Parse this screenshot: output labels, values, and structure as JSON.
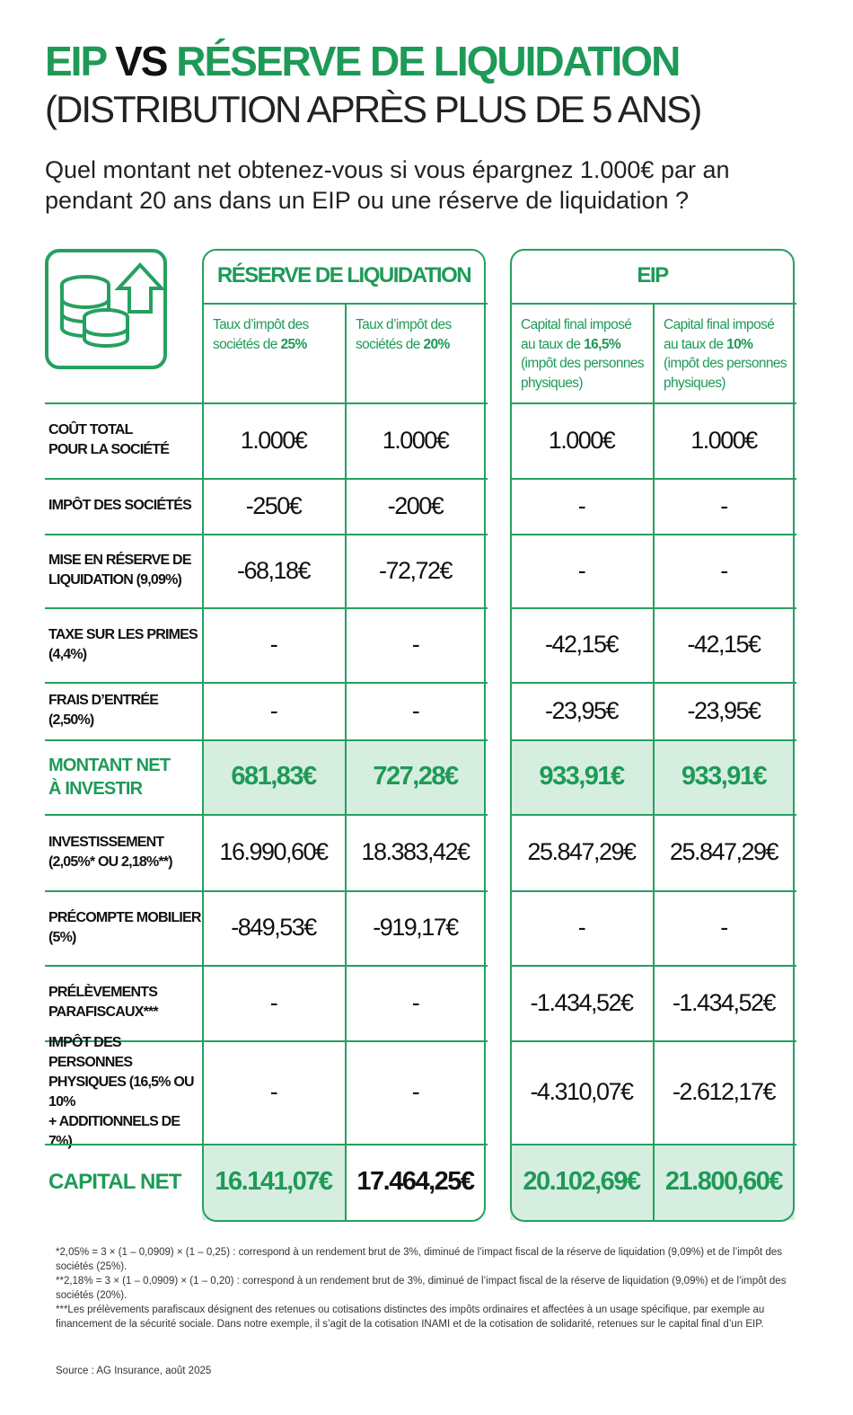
{
  "header": {
    "title_parts": [
      "EIP",
      "VS",
      "RÉSERVE DE LIQUIDATION"
    ],
    "subtitle": "(DISTRIBUTION APRÈS PLUS DE 5 ANS)",
    "question": "Quel montant net obtenez-vous si vous épargnez 1.000€ par an pendant 20 ans dans un EIP ou une réserve de liquidation ?"
  },
  "table": {
    "groups": [
      "RÉSERVE DE LIQUIDATION",
      "EIP"
    ],
    "columns": [
      [
        "Taux d’impôt des sociétés de ",
        "25%"
      ],
      [
        "Taux d’impôt des sociétés de ",
        "20%"
      ],
      [
        "Capital final imposé au taux de ",
        "16,5%",
        " (impôt des personnes physiques)"
      ],
      [
        "Capital final imposé au taux de ",
        "10%",
        " (impôt des personnes physiques)"
      ]
    ],
    "rows": [
      {
        "label": [
          "COÛT TOTAL",
          "POUR LA SOCIÉTÉ"
        ],
        "cells": [
          "1.000€",
          "1.000€",
          "1.000€",
          "1.000€"
        ]
      },
      {
        "label": [
          "IMPÔT DES SOCIÉTÉS"
        ],
        "cells": [
          "-250€",
          "-200€",
          "-",
          "-"
        ]
      },
      {
        "label": [
          "MISE EN RÉSERVE DE",
          "LIQUIDATION (9,09%)"
        ],
        "cells": [
          "-68,18€",
          "-72,72€",
          "-",
          "-"
        ]
      },
      {
        "label": [
          "TAXE SUR LES PRIMES",
          "(4,4%)"
        ],
        "cells": [
          "-",
          "-",
          "-42,15€",
          "-42,15€"
        ]
      },
      {
        "label": [
          "FRAIS D’ENTRÉE (2,50%)"
        ],
        "cells": [
          "-",
          "-",
          "-23,95€",
          "-23,95€"
        ]
      },
      {
        "label": [
          "MONTANT NET",
          "À INVESTIR"
        ],
        "cells": [
          "681,83€",
          "727,28€",
          "933,91€",
          "933,91€"
        ]
      },
      {
        "label": [
          "INVESTISSEMENT",
          "(2,05%* OU 2,18%**)"
        ],
        "cells": [
          "16.990,60€",
          "18.383,42€",
          "25.847,29€",
          "25.847,29€"
        ]
      },
      {
        "label": [
          "PRÉCOMPTE MOBILIER",
          "(5%)"
        ],
        "cells": [
          "-849,53€",
          "-919,17€",
          "-",
          "-"
        ]
      },
      {
        "label": [
          "PRÉLÈVEMENTS",
          "PARAFISCAUX***"
        ],
        "cells": [
          "-",
          "-",
          "-1.434,52€",
          "-1.434,52€"
        ]
      },
      {
        "label": [
          "IMPÔT DES PERSONNES",
          "PHYSIQUES (16,5% OU 10%",
          "+ ADDITIONNELS DE 7%)"
        ],
        "cells": [
          "-",
          "-",
          "-4.310,07€",
          "-2.612,17€"
        ]
      },
      {
        "label": [
          "CAPITAL NET"
        ],
        "cells": [
          "16.141,07€",
          "17.464,25€",
          "20.102,69€",
          "21.800,60€"
        ]
      }
    ]
  },
  "footnotes": [
    "*2,05% = 3 × (1 – 0,0909) × (1 – 0,25) : correspond à un rendement brut de 3%, diminué de l’impact fiscal de la réserve de liquidation (9,09%) et de l’impôt des sociétés (25%).",
    "**2,18% = 3 × (1 – 0,0909) × (1 – 0,20) : correspond à un rendement brut de 3%, diminué de l’impact fiscal de la réserve de liquidation (9,09%) et de l’impôt des sociétés (20%).",
    "***Les prélèvements parafiscaux désignent des retenues ou cotisations distinctes des impôts ordinaires et affectées à un usage spécifique, par exemple au financement de la sécurité sociale. Dans notre exemple, il s’agit de la cotisation INAMI et de la cotisation de solidarité, retenues sur le capital final d’un EIP."
  ],
  "source": "Source : AG Insurance, août 2025"
}
